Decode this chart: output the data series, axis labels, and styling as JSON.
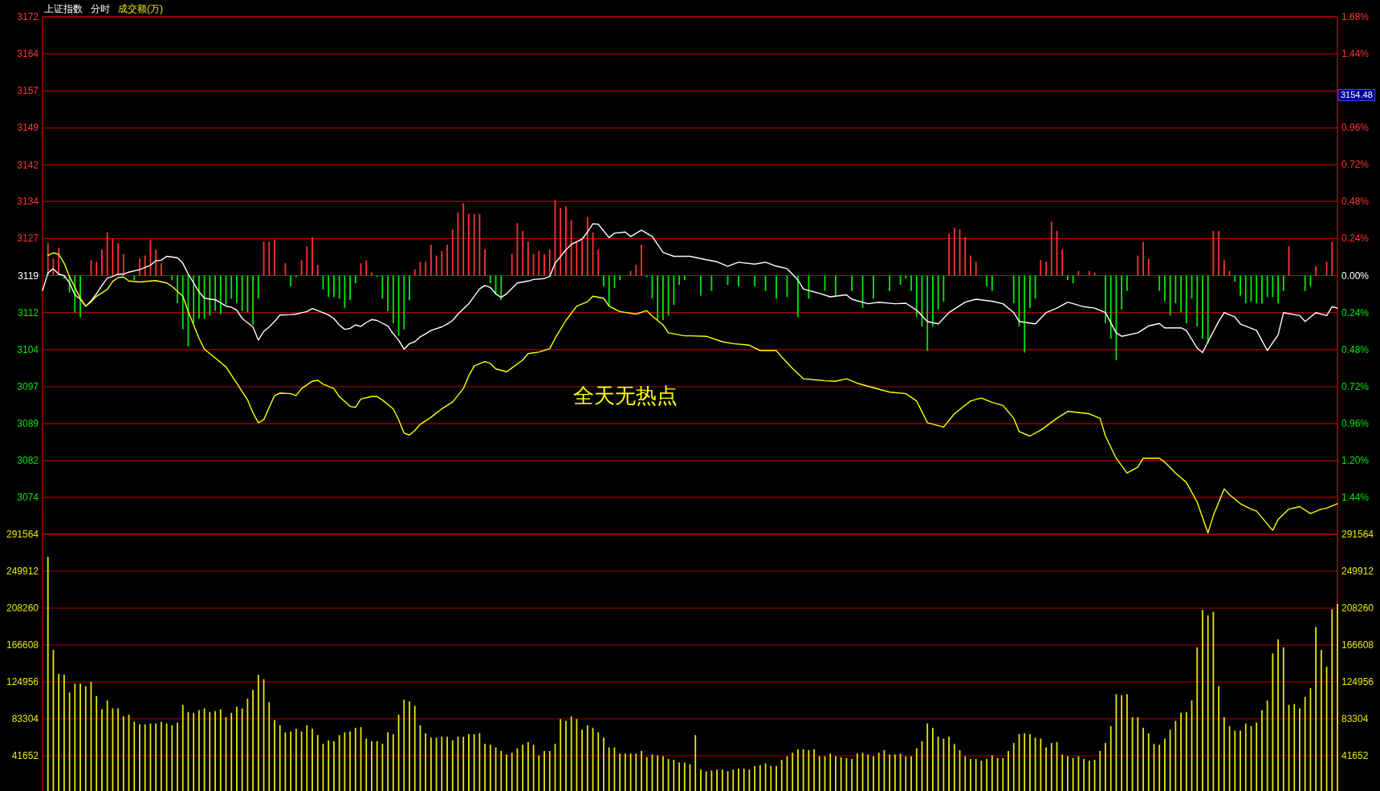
{
  "chart_data": [
    {
      "type": "line",
      "title": "上证指数",
      "subtitle": "分时",
      "categories": [
        null,
        null,
        null,
        null,
        null,
        null,
        null,
        null,
        null,
        null,
        null,
        null,
        null,
        null,
        null,
        null,
        null,
        null,
        null,
        null,
        null,
        null,
        null,
        null,
        null,
        null,
        null,
        null,
        null,
        null,
        null,
        null,
        null,
        null,
        null,
        null,
        null,
        null,
        null,
        null,
        null,
        null,
        null,
        null,
        null,
        null,
        null,
        null,
        null,
        null,
        null,
        null,
        null,
        null,
        null,
        null,
        null,
        null,
        null,
        null,
        null,
        null,
        null,
        null,
        null,
        null,
        null,
        null,
        null,
        null,
        null,
        null,
        null,
        null,
        null,
        null,
        null,
        null,
        null,
        null,
        null,
        null,
        null,
        null,
        null,
        null,
        null,
        null,
        null,
        null,
        null,
        null,
        null,
        null,
        null,
        null,
        null,
        null,
        null,
        null,
        null,
        null,
        null,
        null,
        null,
        null,
        null,
        null,
        null,
        null,
        null,
        null,
        null,
        null,
        null,
        null,
        null,
        null,
        null,
        null,
        null,
        null,
        null,
        null,
        null,
        null,
        null,
        null,
        null,
        null,
        null,
        null,
        null,
        null,
        null,
        null,
        null,
        null,
        null,
        null,
        null,
        null,
        null,
        null,
        null,
        null,
        null,
        null,
        null,
        null,
        null,
        null,
        null,
        null,
        null,
        null,
        null,
        null,
        null,
        null,
        null,
        null,
        null,
        null,
        null,
        null,
        null,
        null,
        null,
        null,
        null,
        null,
        null,
        null,
        null,
        null,
        null,
        null,
        null,
        null,
        null,
        null,
        null,
        null,
        null,
        null,
        null,
        null,
        null,
        null,
        null,
        null,
        null,
        null,
        null,
        null,
        null,
        null,
        null,
        null,
        null,
        null,
        null,
        null,
        null,
        null,
        null,
        null,
        null,
        null,
        null,
        null,
        null,
        null,
        null,
        null,
        null,
        null,
        null,
        null,
        null,
        null,
        null,
        null,
        null,
        null,
        null,
        null,
        null,
        null,
        null,
        null,
        null,
        null,
        null,
        null,
        null,
        null,
        null,
        null,
        null
      ],
      "ylim": [
        3066.8,
        3171.6
      ],
      "yticks": [
        {
          "value": 3171.6,
          "label": "3172"
        },
        {
          "value": 3164.1,
          "label": "3164"
        },
        {
          "value": 3156.6,
          "label": "3157"
        },
        {
          "value": 3149.1,
          "label": "3149"
        },
        {
          "value": 3141.6,
          "label": "3142"
        },
        {
          "value": 3134.2,
          "label": "3134"
        },
        {
          "value": 3126.7,
          "label": "3127"
        },
        {
          "value": 3119.2,
          "label": "3119"
        },
        {
          "value": 3111.7,
          "label": "3112"
        },
        {
          "value": 3104.2,
          "label": "3104"
        },
        {
          "value": 3096.7,
          "label": "3097"
        },
        {
          "value": 3089.2,
          "label": "3089"
        },
        {
          "value": 3081.7,
          "label": "3082"
        },
        {
          "value": 3074.3,
          "label": "3074"
        }
      ],
      "y2lim": [
        -1.68,
        1.68
      ],
      "y2ticks": [
        {
          "value": 1.68,
          "label": "1.68%"
        },
        {
          "value": 1.44,
          "label": "1.44%"
        },
        {
          "value": 1.2,
          "label": null
        },
        {
          "value": 0.96,
          "label": "0.96%"
        },
        {
          "value": 0.72,
          "label": "0.72%"
        },
        {
          "value": 0.48,
          "label": "0.48%"
        },
        {
          "value": 0.24,
          "label": "0.24%"
        },
        {
          "value": 0,
          "label": "0.00%"
        },
        {
          "value": -0.24,
          "label": "0.24%"
        },
        {
          "value": -0.48,
          "label": "0.48%"
        },
        {
          "value": -0.72,
          "label": "0.72%"
        },
        {
          "value": -0.96,
          "label": "0.96%"
        },
        {
          "value": -1.2,
          "label": "1.20%"
        },
        {
          "value": -1.44,
          "label": "1.44%"
        }
      ],
      "grid": "y",
      "annotations": [
        "成交额(万)",
        "3154.48",
        "全天无热点"
      ],
      "series": [
        {
          "type": "bar",
          "axis": "y2",
          "color": "#ff3232",
          "values": [
            null,
            0.21,
            0.11,
            0.18,
            null,
            null,
            null,
            null,
            null,
            0.1,
            0.09,
            0.17,
            0.28,
            0.24,
            0.21,
            0.14,
            null,
            null,
            0.11,
            0.13,
            0.23,
            0.17,
            0.08,
            null,
            null,
            null,
            null,
            null,
            null,
            null,
            null,
            null,
            null,
            null,
            null,
            null,
            null,
            null,
            null,
            null,
            null,
            0.22,
            0.22,
            0.23,
            null,
            0.08,
            null,
            null,
            0.1,
            0.19,
            0.25,
            0.07,
            null,
            null,
            null,
            null,
            null,
            null,
            null,
            0.08,
            0.1,
            0.02,
            null,
            null,
            null,
            null,
            null,
            null,
            null,
            0.04,
            0.09,
            0.09,
            0.2,
            0.13,
            0.16,
            0.2,
            0.3,
            0.41,
            0.47,
            0.4,
            0.4,
            0.4,
            0.17,
            null,
            null,
            null,
            null,
            0.14,
            0.34,
            0.29,
            0.22,
            0.14,
            0.16,
            0.14,
            0.17,
            0.49,
            0.44,
            0.45,
            0.36,
            0.22,
            0.23,
            0.38,
            0.28,
            0.17,
            null,
            null,
            null,
            null,
            null,
            0.03,
            0.07,
            0.2,
            null,
            null,
            null,
            null,
            null,
            null,
            null,
            null,
            null,
            null,
            null,
            null,
            null,
            null,
            null,
            null,
            null,
            null,
            null,
            null,
            null,
            null,
            null,
            null,
            null,
            null,
            null,
            null,
            null,
            null,
            null,
            null,
            null,
            null,
            null,
            null,
            null,
            null,
            null,
            null,
            null,
            null,
            null,
            null,
            null,
            null,
            null,
            null,
            null,
            null,
            null,
            null,
            null,
            null,
            null,
            null,
            0.27,
            0.31,
            0.3,
            0.25,
            0.13,
            0.09,
            null,
            null,
            null,
            null,
            null,
            null,
            null,
            null,
            null,
            null,
            null,
            0.1,
            0.09,
            0.35,
            0.29,
            0.17,
            null,
            null,
            0.03,
            null,
            0.03,
            0.02,
            null,
            null,
            null,
            null,
            null,
            null,
            null,
            0.13,
            0.22,
            0.11,
            null,
            null,
            null,
            null,
            null,
            null,
            null,
            null,
            null,
            null,
            null,
            0.29,
            0.29,
            0.1,
            0.03,
            null,
            null,
            null,
            null,
            null,
            null,
            null,
            null,
            null,
            null,
            0.19,
            null,
            null,
            null,
            null,
            0.06,
            null,
            0.09,
            0.22,
            null
          ]
        },
        {
          "type": "bar",
          "axis": "y2",
          "color": "#00e600",
          "values": [
            null,
            null,
            null,
            null,
            -0.02,
            -0.11,
            -0.24,
            -0.27,
            null,
            null,
            null,
            null,
            null,
            null,
            null,
            null,
            null,
            -0.03,
            null,
            null,
            null,
            null,
            null,
            null,
            -0.03,
            -0.18,
            -0.35,
            -0.46,
            -0.31,
            -0.28,
            -0.28,
            -0.26,
            -0.23,
            -0.25,
            -0.19,
            -0.15,
            -0.18,
            -0.23,
            -0.24,
            -0.32,
            -0.15,
            null,
            null,
            null,
            null,
            null,
            -0.07,
            -0.01,
            null,
            null,
            null,
            null,
            -0.09,
            -0.14,
            -0.14,
            -0.15,
            -0.21,
            -0.16,
            -0.05,
            null,
            null,
            null,
            -0.01,
            -0.15,
            -0.23,
            -0.31,
            -0.39,
            -0.35,
            -0.16,
            null,
            null,
            null,
            null,
            null,
            null,
            null,
            null,
            null,
            null,
            null,
            null,
            null,
            null,
            -0.05,
            -0.12,
            -0.16,
            null,
            null,
            null,
            null,
            null,
            null,
            null,
            null,
            null,
            null,
            null,
            null,
            null,
            null,
            null,
            null,
            null,
            null,
            -0.07,
            -0.2,
            -0.08,
            -0.03,
            null,
            null,
            null,
            null,
            -0.01,
            -0.15,
            -0.29,
            -0.29,
            -0.26,
            -0.19,
            -0.06,
            -0.03,
            null,
            null,
            -0.13,
            null,
            -0.1,
            null,
            null,
            -0.06,
            null,
            -0.07,
            null,
            null,
            -0.07,
            null,
            -0.1,
            null,
            -0.15,
            null,
            -0.14,
            null,
            -0.27,
            null,
            -0.15,
            null,
            null,
            -0.1,
            null,
            -0.13,
            null,
            null,
            -0.1,
            null,
            -0.21,
            null,
            -0.15,
            null,
            null,
            -0.1,
            null,
            -0.06,
            -0.02,
            -0.1,
            -0.27,
            -0.33,
            -0.49,
            -0.33,
            -0.22,
            -0.17,
            null,
            null,
            null,
            null,
            null,
            null,
            null,
            -0.07,
            -0.1,
            null,
            null,
            null,
            -0.18,
            -0.33,
            -0.5,
            -0.21,
            -0.15,
            null,
            null,
            null,
            null,
            null,
            -0.03,
            -0.05,
            null,
            null,
            null,
            null,
            null,
            -0.31,
            -0.41,
            -0.55,
            -0.22,
            -0.1,
            null,
            null,
            null,
            null,
            null,
            -0.1,
            -0.17,
            -0.26,
            -0.18,
            -0.24,
            -0.31,
            -0.15,
            -0.33,
            -0.41,
            -0.44,
            null,
            null,
            null,
            null,
            -0.04,
            -0.13,
            -0.18,
            -0.17,
            -0.18,
            -0.18,
            -0.14,
            -0.14,
            -0.18,
            -0.1,
            null,
            null,
            null,
            -0.1,
            -0.07,
            null,
            null,
            null,
            null,
            null
          ]
        },
        {
          "color": "#ffffff",
          "values": [
            3116.2,
            3119.7,
            3120.6,
            3119.5,
            3119.2,
            3117.7,
            3115.3,
            3114.4,
            3113.0,
            3114.1,
            3115.5,
            3117.2,
            3118.7,
            3119.0,
            3119.5,
            3119.5,
            3119.9,
            null,
            3120.4,
            null,
            3121.3,
            3122.2,
            3122.3,
            3123.1,
            null,
            3122.8,
            3121.7,
            3119.5,
            3117.7,
            3115.9,
            3114.6,
            null,
            3114.3,
            3113.7,
            3113.0,
            3112.8,
            3112.2,
            3110.5,
            null,
            3108.8,
            3106.1,
            3107.9,
            3108.8,
            3109.9,
            3111.2,
            null,
            3111.3,
            3111.4,
            null,
            3111.9,
            3112.5,
            3112.1,
            null,
            3111.2,
            3110.5,
            3109.2,
            3108.3,
            3108.5,
            3109.2,
            3108.9,
            3109.7,
            3110.3,
            3110.1,
            null,
            3109.0,
            3107.4,
            3106.1,
            3104.3,
            3105.4,
            3105.8,
            3106.8,
            3107.4,
            3108.1,
            null,
            3108.8,
            3109.4,
            3110.1,
            3111.4,
            null,
            3113.5,
            3115.0,
            3116.5,
            3117.2,
            3116.8,
            3115.5,
            3114.8,
            3115.5,
            null,
            3117.7,
            null,
            3118.1,
            3118.4,
            null,
            3118.6,
            3119.0,
            3121.7,
            null,
            3124.4,
            3125.5,
            null,
            3126.6,
            3128.0,
            3129.7,
            3129.6,
            null,
            3126.9,
            3127.8,
            null,
            3128.0,
            3127.1,
            null,
            3128.4,
            null,
            3127.1,
            null,
            3123.9,
            null,
            3123.1,
            null,
            null,
            3123.1,
            null,
            null,
            3122.4,
            null,
            3122.0,
            null,
            3121.1,
            null,
            3121.9,
            null,
            null,
            3121.5,
            null,
            3121.9,
            null,
            3121.1,
            null,
            3120.6,
            null,
            3118.3,
            3116.5,
            null,
            null,
            3115.6,
            null,
            3114.9,
            null,
            null,
            3115.3,
            3114.4,
            null,
            null,
            3113.5,
            null,
            3113.8,
            null,
            null,
            3113.5,
            null,
            3113.6,
            null,
            3112.2,
            null,
            3109.9,
            null,
            3109.4,
            null,
            3111.7,
            null,
            null,
            3113.8,
            null,
            3114.4,
            null,
            null,
            3114.0,
            null,
            3113.5,
            null,
            3111.7,
            3109.9,
            null,
            null,
            3109.4,
            null,
            3111.7,
            null,
            3112.6,
            null,
            3113.8,
            null,
            null,
            3112.9,
            null,
            3112.6,
            null,
            3111.7,
            null,
            3107.6,
            3106.9,
            null,
            null,
            3107.6,
            null,
            3109.0,
            null,
            3109.5,
            3108.6,
            null,
            null,
            3108.6,
            3108.1,
            null,
            3104.5,
            3103.6,
            3105.8,
            null,
            3109.9,
            3111.7,
            null,
            3110.8,
            3109.4,
            null,
            null,
            3108.1,
            null,
            3104.0,
            null,
            3107.2,
            3111.7,
            null,
            null,
            3111.1,
            3109.9,
            null,
            3111.7,
            null,
            3111.1,
            3112.9,
            3112.6
          ]
        },
        {
          "color": "#ffff00",
          "values": [
            null,
            3123.3,
            3123.8,
            3123.5,
            3121.7,
            3119.0,
            3116.8,
            3114.6,
            3113.0,
            3113.9,
            3115.0,
            null,
            3116.4,
            3118.0,
            3118.8,
            3118.9,
            3118.1,
            null,
            3117.9,
            null,
            3118.1,
            3118.2,
            null,
            3117.7,
            3117.0,
            null,
            3115.0,
            3111.9,
            3109.2,
            3106.5,
            3104.3,
            null,
            3102.5,
            null,
            3100.7,
            null,
            3097.4,
            null,
            3094.0,
            3091.4,
            3089.4,
            3090.0,
            3092.5,
            3094.9,
            3095.4,
            null,
            3095.3,
            3094.9,
            3096.3,
            null,
            3097.8,
            3098.0,
            3097.2,
            null,
            3096.3,
            3094.7,
            null,
            3092.7,
            3092.5,
            3094.2,
            null,
            3094.7,
            3094.7,
            3094.0,
            null,
            3092.2,
            3090.0,
            3087.3,
            3086.9,
            3087.8,
            3089.1,
            null,
            3090.5,
            3091.4,
            3092.2,
            null,
            3093.6,
            null,
            3096.3,
            3098.9,
            3100.9,
            null,
            3101.8,
            3101.4,
            3100.3,
            null,
            3099.7,
            3100.5,
            null,
            3102.1,
            3103.4,
            null,
            3103.7,
            null,
            3104.4,
            3106.5,
            null,
            3110.1,
            null,
            3113.0,
            null,
            3113.9,
            3115.0,
            null,
            3114.6,
            3113.0,
            null,
            3111.9,
            null,
            null,
            3111.4,
            null,
            3112.1,
            3111.0,
            null,
            3109.2,
            3107.6,
            null,
            null,
            3107.0,
            3107.0,
            null,
            null,
            3106.9,
            null,
            null,
            3105.8,
            null,
            3105.4,
            null,
            null,
            3105.1,
            null,
            3104.0,
            null,
            null,
            3104.0,
            3102.7,
            null,
            3100.4,
            null,
            3098.3,
            null,
            null,
            null,
            3097.9,
            null,
            3097.8,
            null,
            3098.3,
            null,
            3097.4,
            null,
            null,
            3096.5,
            null,
            null,
            3095.6,
            null,
            null,
            3095.3,
            null,
            3093.8,
            null,
            3089.4,
            null,
            null,
            3088.5,
            null,
            3091.2,
            null,
            null,
            3093.8,
            null,
            3094.4,
            null,
            3093.5,
            null,
            3092.9,
            null,
            3090.3,
            3087.6,
            null,
            3086.7,
            null,
            3087.9,
            null,
            null,
            3090.3,
            null,
            3091.7,
            null,
            null,
            null,
            3091.2,
            null,
            3090.3,
            3086.7,
            null,
            3082.2,
            null,
            3079.2,
            null,
            3080.4,
            3082.2,
            null,
            null,
            3082.2,
            3081.4,
            null,
            3079.2,
            null,
            3077.3,
            null,
            3073.3,
            null,
            3067.1,
            3070.6,
            null,
            3076.0,
            3074.8,
            null,
            3073.0,
            null,
            3071.9,
            3071.5,
            null,
            null,
            3067.6,
            3069.8,
            null,
            3071.9,
            null,
            3072.4,
            null,
            3071.0,
            null,
            3071.9,
            3072.1,
            null,
            3073.0
          ]
        }
      ]
    },
    {
      "type": "bar",
      "color": "#e6e600",
      "categories": [
        null,
        null,
        null,
        null,
        null,
        null,
        null,
        null,
        null,
        null,
        null,
        null,
        null,
        null,
        null,
        null,
        null,
        null,
        null,
        null,
        null,
        null,
        null,
        null,
        null,
        null,
        null,
        null,
        null,
        null,
        null,
        null,
        null,
        null,
        null,
        null,
        null,
        null,
        null,
        null,
        null,
        null,
        null,
        null,
        null,
        null,
        null,
        null,
        null,
        null,
        null,
        null,
        null,
        null,
        null,
        null,
        null,
        null,
        null,
        null,
        null,
        null,
        null,
        null,
        null,
        null,
        null,
        null,
        null,
        null,
        null,
        null,
        null,
        null,
        null,
        null,
        null,
        null,
        null,
        null,
        null,
        null,
        null,
        null,
        null,
        null,
        null,
        null,
        null,
        null,
        null,
        null,
        null,
        null,
        null,
        null,
        null,
        null,
        null,
        null,
        null,
        null,
        null,
        null,
        null,
        null,
        null,
        null,
        null,
        null,
        null,
        null,
        null,
        null,
        null,
        null,
        null,
        null,
        null,
        null,
        null,
        null,
        null,
        null,
        null,
        null,
        null,
        null,
        null,
        null,
        null,
        null,
        null,
        null,
        null,
        null,
        null,
        null,
        null,
        null,
        null,
        null,
        null,
        null,
        null,
        null,
        null,
        null,
        null,
        null,
        null,
        null,
        null,
        null,
        null,
        null,
        null,
        null,
        null,
        null,
        null,
        null,
        null,
        null,
        null,
        null,
        null,
        null,
        null,
        null,
        null,
        null,
        null,
        null,
        null,
        null,
        null,
        null,
        null,
        null,
        null,
        null,
        null,
        null,
        null,
        null,
        null,
        null,
        null,
        null,
        null,
        null,
        null,
        null,
        null,
        null,
        null,
        null,
        null,
        null,
        null,
        null,
        null,
        null,
        null,
        null,
        null,
        null,
        null,
        null,
        null,
        null,
        null,
        null,
        null,
        null,
        null,
        null,
        null,
        null,
        null,
        null,
        null,
        null,
        null,
        null,
        null,
        null,
        null,
        null,
        null,
        null,
        null,
        null,
        null,
        null,
        null,
        null,
        null,
        null,
        null
      ],
      "ylim": [
        0,
        291564
      ],
      "yticks": [
        41652,
        83304,
        124956,
        166608,
        208260,
        249912,
        291564
      ],
      "y2lim": [
        0,
        291564
      ],
      "y2ticks": [
        41652,
        83304,
        124956,
        166608,
        208260,
        249912,
        291564
      ],
      "grid": "y",
      "values": [
        null,
        266000,
        161000,
        134000,
        133000,
        113000,
        123000,
        123000,
        120000,
        125000,
        109000,
        94000,
        104000,
        95000,
        95000,
        86000,
        88000,
        80000,
        77000,
        77000,
        78000,
        78000,
        80000,
        78000,
        76000,
        79000,
        99000,
        91000,
        90000,
        93000,
        95000,
        91000,
        92000,
        94000,
        85000,
        90000,
        97000,
        95000,
        106000,
        116000,
        133000,
        128000,
        102000,
        82000,
        76000,
        68000,
        69000,
        72000,
        69000,
        76000,
        72000,
        65000,
        55000,
        59000,
        58000,
        65000,
        68000,
        69000,
        73000,
        74000,
        61000,
        58000,
        58000,
        55000,
        68000,
        66000,
        88000,
        105000,
        103000,
        98000,
        76000,
        67000,
        62000,
        62000,
        63000,
        63000,
        59000,
        63000,
        63000,
        66000,
        66000,
        67000,
        55000,
        54000,
        51000,
        47000,
        43000,
        45000,
        50000,
        54000,
        57000,
        54000,
        42000,
        47000,
        47000,
        55000,
        83000,
        81000,
        86000,
        83000,
        71000,
        76000,
        73000,
        68000,
        62000,
        51000,
        51000,
        44000,
        44000,
        44000,
        44000,
        47000,
        40000,
        43000,
        42000,
        41000,
        38000,
        37000,
        34000,
        34000,
        32000,
        65000,
        26000,
        24000,
        25000,
        26000,
        26000,
        24000,
        26000,
        27000,
        27000,
        26000,
        30000,
        31000,
        33000,
        30000,
        30000,
        37000,
        41000,
        45000,
        49000,
        49000,
        48000,
        49000,
        41000,
        41000,
        44000,
        41000,
        40000,
        39000,
        38000,
        44000,
        45000,
        43000,
        41000,
        45000,
        48000,
        43000,
        43000,
        44000,
        41000,
        41000,
        50000,
        58000,
        78000,
        73000,
        63000,
        61000,
        63000,
        55000,
        48000,
        41000,
        38000,
        38000,
        36000,
        38000,
        42000,
        39000,
        39000,
        47000,
        56000,
        66000,
        67000,
        66000,
        62000,
        61000,
        51000,
        56000,
        57000,
        43000,
        41000,
        39000,
        41000,
        38000,
        36000,
        37000,
        47000,
        56000,
        75000,
        111000,
        110000,
        111000,
        85000,
        85000,
        73000,
        67000,
        55000,
        54000,
        61000,
        71000,
        81000,
        90000,
        91000,
        104000,
        164000,
        206000,
        200000,
        204000,
        120000,
        85000,
        75000,
        70000,
        70000,
        78000,
        75000,
        79000,
        93000,
        104000,
        157000,
        173000,
        164000,
        99000,
        100000,
        95000,
        108000,
        118000,
        187000,
        161000,
        142000,
        207000,
        213000
      ]
    }
  ]
}
